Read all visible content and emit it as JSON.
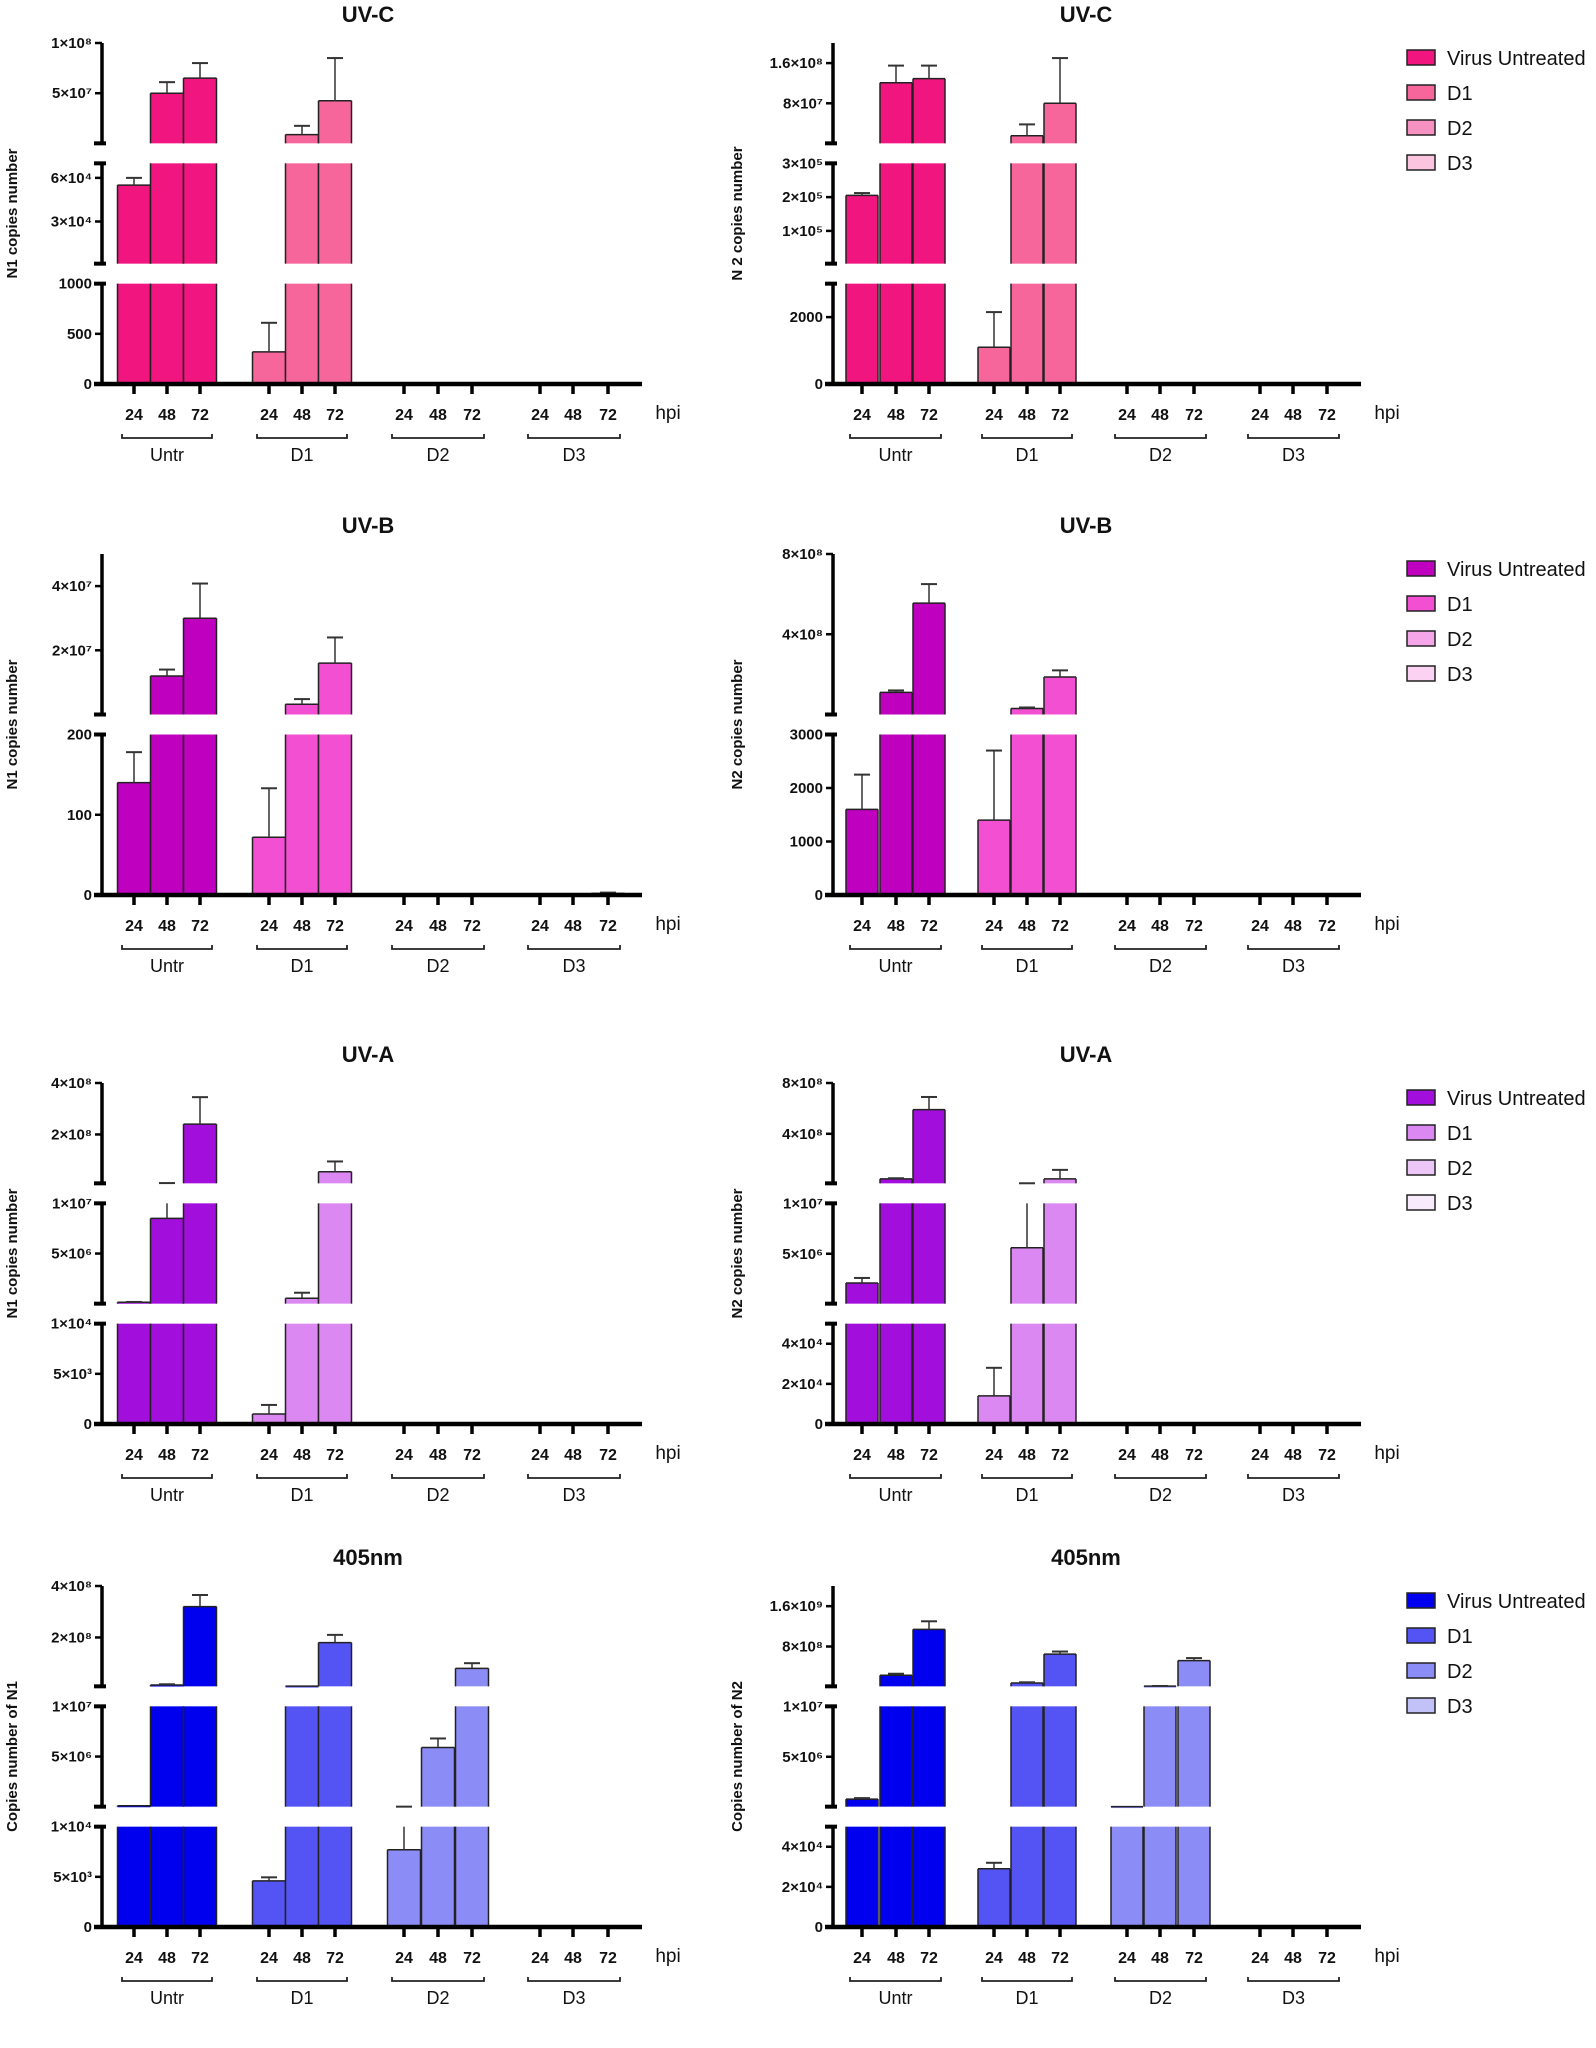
{
  "chart_data": {
    "type": "bar",
    "legend_entries": [
      "Virus Untreated",
      "D1",
      "D2",
      "D3"
    ],
    "groups": [
      "Untr",
      "D1",
      "D2",
      "D3"
    ],
    "hpi_ticks": [
      "24",
      "48",
      "72"
    ],
    "x_unit_label": "hpi",
    "legend_placement": "right",
    "error_bars": "upper (mean + error)",
    "panels": [
      {
        "title": "UV-C",
        "ylabel": "N1 copies number",
        "show_legend": false,
        "colors": [
          "#f0157f",
          "#f7669a",
          "#f592c2",
          "#fbc4df"
        ],
        "segments": [
          {
            "range": [
              0,
              1000
            ],
            "ticks": [
              {
                "value": 0,
                "label": "0"
              },
              {
                "value": 500,
                "label": "500"
              },
              {
                "value": 1000,
                "label": "1000"
              }
            ]
          },
          {
            "range": [
              1000,
              70000
            ],
            "ticks": [
              {
                "value": 30000,
                "label": "3×10⁴"
              },
              {
                "value": 60000,
                "label": "6×10⁴"
              }
            ]
          },
          {
            "range": [
              70000,
              100000000
            ],
            "ticks": [
              {
                "value": 50000000,
                "label": "5×10⁷"
              },
              {
                "value": 100000000,
                "label": "1×10⁸"
              }
            ]
          }
        ],
        "series": [
          {
            "group": "Untr",
            "values": [
              55000,
              50000000,
              65000000
            ],
            "error_upper": [
              60000,
              61000000,
              80000000
            ]
          },
          {
            "group": "D1",
            "values": [
              320,
              8750000,
              42500000
            ],
            "error_upper": [
              610,
              17500000,
              85000000
            ]
          },
          {
            "group": "D2",
            "values": [
              0,
              0,
              0
            ],
            "error_upper": [
              0,
              0,
              0
            ]
          },
          {
            "group": "D3",
            "values": [
              0,
              0,
              0
            ],
            "error_upper": [
              0,
              0,
              0
            ]
          }
        ]
      },
      {
        "title": "UV-C",
        "ylabel": "N 2 copies number",
        "show_legend": true,
        "colors": [
          "#f0157f",
          "#f7669a",
          "#f592c2",
          "#fbc4df"
        ],
        "segments": [
          {
            "range": [
              0,
              3000
            ],
            "ticks": [
              {
                "value": 0,
                "label": "0"
              },
              {
                "value": 2000,
                "label": "2000"
              }
            ]
          },
          {
            "range": [
              3000,
              300000
            ],
            "ticks": [
              {
                "value": 100000,
                "label": "1×10⁵"
              },
              {
                "value": 200000,
                "label": "2×10⁵"
              },
              {
                "value": 300000,
                "label": "3×10⁵"
              }
            ]
          },
          {
            "range": [
              300000,
              200000000
            ],
            "ticks": [
              {
                "value": 80000000,
                "label": "8×10⁷"
              },
              {
                "value": 160000000,
                "label": "1.6×10⁸"
              }
            ]
          }
        ],
        "series": [
          {
            "group": "Untr",
            "values": [
              205000,
              121000000,
              129000000
            ],
            "error_upper": [
              212000,
              155000000,
              155000000
            ]
          },
          {
            "group": "D1",
            "values": [
              1100,
              15500000,
              80000000
            ],
            "error_upper": [
              2150,
              38000000,
              170000000
            ]
          },
          {
            "group": "D2",
            "values": [
              0,
              0,
              0
            ],
            "error_upper": [
              0,
              0,
              0
            ]
          },
          {
            "group": "D3",
            "values": [
              0,
              0,
              0
            ],
            "error_upper": [
              0,
              0,
              0
            ]
          }
        ]
      },
      {
        "title": "UV-B",
        "ylabel": "N1 copies number",
        "show_legend": false,
        "colors": [
          "#c000bf",
          "#f34fd3",
          "#f5a6e8",
          "#fbd2f2"
        ],
        "segments": [
          {
            "range": [
              0,
              200
            ],
            "ticks": [
              {
                "value": 0,
                "label": "0"
              },
              {
                "value": 100,
                "label": "100"
              },
              {
                "value": 200,
                "label": "200"
              }
            ]
          },
          {
            "range": [
              200,
              50000000
            ],
            "ticks": [
              {
                "value": 20000000,
                "label": "2×10⁷"
              },
              {
                "value": 40000000,
                "label": "4×10⁷"
              }
            ]
          }
        ],
        "series": [
          {
            "group": "Untr",
            "values": [
              140,
              12000000,
              30000000
            ],
            "error_upper": [
              178,
              14000000,
              40800000
            ]
          },
          {
            "group": "D1",
            "values": [
              72,
              3200000,
              16000000
            ],
            "error_upper": [
              133,
              4800000,
              24000000
            ]
          },
          {
            "group": "D2",
            "values": [
              0,
              0,
              0
            ],
            "error_upper": [
              0,
              0,
              0
            ]
          },
          {
            "group": "D3",
            "values": [
              0,
              0,
              2
            ],
            "error_upper": [
              0,
              0,
              3
            ]
          }
        ]
      },
      {
        "title": "UV-B",
        "ylabel": "N2 copies number",
        "show_legend": true,
        "colors": [
          "#c000bf",
          "#f34fd3",
          "#f5a6e8",
          "#fbd2f2"
        ],
        "segments": [
          {
            "range": [
              0,
              3000
            ],
            "ticks": [
              {
                "value": 0,
                "label": "0"
              },
              {
                "value": 1000,
                "label": "1000"
              },
              {
                "value": 2000,
                "label": "2000"
              },
              {
                "value": 3000,
                "label": "3000"
              }
            ]
          },
          {
            "range": [
              3000,
              800000000
            ],
            "ticks": [
              {
                "value": 400000000,
                "label": "4×10⁸"
              },
              {
                "value": 800000000,
                "label": "8×10⁸"
              }
            ]
          }
        ],
        "series": [
          {
            "group": "Untr",
            "values": [
              1600,
              110000000,
              555000000
            ],
            "error_upper": [
              2250,
              120000000,
              650000000
            ]
          },
          {
            "group": "D1",
            "values": [
              1400,
              30000000,
              187000000
            ],
            "error_upper": [
              2700,
              35000000,
              220000000
            ]
          },
          {
            "group": "D2",
            "values": [
              0,
              0,
              0
            ],
            "error_upper": [
              0,
              0,
              0
            ]
          },
          {
            "group": "D3",
            "values": [
              0,
              0,
              0
            ],
            "error_upper": [
              0,
              0,
              0
            ]
          }
        ]
      },
      {
        "title": "UV-A",
        "ylabel": "N1 copies number",
        "show_legend": false,
        "colors": [
          "#a20fdc",
          "#dc88f2",
          "#ecc6f6",
          "#f8ecfc"
        ],
        "segments": [
          {
            "range": [
              0,
              10000
            ],
            "ticks": [
              {
                "value": 0,
                "label": "0"
              },
              {
                "value": 5000,
                "label": "5×10³"
              },
              {
                "value": 10000,
                "label": "1×10⁴"
              }
            ]
          },
          {
            "range": [
              10000,
              10000000
            ],
            "ticks": [
              {
                "value": 5000000,
                "label": "5×10⁶"
              },
              {
                "value": 10000000,
                "label": "1×10⁷"
              }
            ]
          },
          {
            "range": [
              10000000,
              400000000
            ],
            "ticks": [
              {
                "value": 200000000,
                "label": "2×10⁸"
              },
              {
                "value": 400000000,
                "label": "4×10⁸"
              }
            ]
          }
        ],
        "series": [
          {
            "group": "Untr",
            "values": [
              150000,
              8500000,
              240000000
            ],
            "error_upper": [
              180000,
              11000000,
              345000000
            ]
          },
          {
            "group": "D1",
            "values": [
              1000,
              550000,
              55000000
            ],
            "error_upper": [
              1900,
              1100000,
              95000000
            ]
          },
          {
            "group": "D2",
            "values": [
              0,
              0,
              0
            ],
            "error_upper": [
              0,
              0,
              0
            ]
          },
          {
            "group": "D3",
            "values": [
              0,
              0,
              0
            ],
            "error_upper": [
              0,
              0,
              0
            ]
          }
        ]
      },
      {
        "title": "UV-A",
        "ylabel": "N2 copies number",
        "show_legend": true,
        "colors": [
          "#a20fdc",
          "#dc88f2",
          "#ecc6f6",
          "#f8ecfc"
        ],
        "segments": [
          {
            "range": [
              0,
              50000
            ],
            "ticks": [
              {
                "value": 0,
                "label": "0"
              },
              {
                "value": 20000,
                "label": "2×10⁴"
              },
              {
                "value": 40000,
                "label": "4×10⁴"
              }
            ]
          },
          {
            "range": [
              50000,
              10000000
            ],
            "ticks": [
              {
                "value": 5000000,
                "label": "5×10⁶"
              },
              {
                "value": 10000000,
                "label": "1×10⁷"
              }
            ]
          },
          {
            "range": [
              10000000,
              800000000
            ],
            "ticks": [
              {
                "value": 400000000,
                "label": "4×10⁸"
              },
              {
                "value": 800000000,
                "label": "8×10⁸"
              }
            ]
          }
        ],
        "series": [
          {
            "group": "Untr",
            "values": [
              2100000,
              45000000,
              590000000
            ],
            "error_upper": [
              2600000,
              50000000,
              690000000
            ]
          },
          {
            "group": "D1",
            "values": [
              14000,
              5600000,
              45000000
            ],
            "error_upper": [
              28000,
              10500000,
              116000000
            ]
          },
          {
            "group": "D2",
            "values": [
              0,
              0,
              0
            ],
            "error_upper": [
              0,
              0,
              0
            ]
          },
          {
            "group": "D3",
            "values": [
              0,
              0,
              0
            ],
            "error_upper": [
              0,
              0,
              0
            ]
          }
        ]
      },
      {
        "title": "405nm",
        "ylabel": "Copies number of N1",
        "show_legend": false,
        "colors": [
          "#0000ee",
          "#5454f5",
          "#8c8cf6",
          "#c2c2f9"
        ],
        "segments": [
          {
            "range": [
              0,
              10000
            ],
            "ticks": [
              {
                "value": 0,
                "label": "0"
              },
              {
                "value": 5000,
                "label": "5×10³"
              },
              {
                "value": 10000,
                "label": "1×10⁴"
              }
            ]
          },
          {
            "range": [
              10000,
              10000000
            ],
            "ticks": [
              {
                "value": 5000000,
                "label": "5×10⁶"
              },
              {
                "value": 10000000,
                "label": "1×10⁷"
              }
            ]
          },
          {
            "range": [
              10000000,
              400000000
            ],
            "ticks": [
              {
                "value": 200000000,
                "label": "2×10⁸"
              },
              {
                "value": 400000000,
                "label": "4×10⁸"
              }
            ]
          }
        ],
        "series": [
          {
            "group": "Untr",
            "values": [
              100000,
              15000000,
              320000000
            ],
            "error_upper": [
              100000,
              18000000,
              365000000
            ]
          },
          {
            "group": "D1",
            "values": [
              4600,
              11000000,
              180000000
            ],
            "error_upper": [
              4950,
              11000000,
              210000000
            ]
          },
          {
            "group": "D2",
            "values": [
              7700,
              5900000,
              80000000
            ],
            "error_upper": [
              12000,
              6800000,
              100000000
            ]
          },
          {
            "group": "D3",
            "values": [
              0,
              0,
              0
            ],
            "error_upper": [
              0,
              0,
              0
            ]
          }
        ]
      },
      {
        "title": "405nm",
        "ylabel": "Copies number of N2",
        "show_legend": true,
        "colors": [
          "#0000ee",
          "#5454f5",
          "#8c8cf6",
          "#c2c2f9"
        ],
        "segments": [
          {
            "range": [
              0,
              50000
            ],
            "ticks": [
              {
                "value": 0,
                "label": "0"
              },
              {
                "value": 20000,
                "label": "2×10⁴"
              },
              {
                "value": 40000,
                "label": "4×10⁴"
              }
            ]
          },
          {
            "range": [
              50000,
              10000000
            ],
            "ticks": [
              {
                "value": 5000000,
                "label": "5×10⁶"
              },
              {
                "value": 10000000,
                "label": "1×10⁷"
              }
            ]
          },
          {
            "range": [
              10000000,
              2000000000
            ],
            "ticks": [
              {
                "value": 800000000,
                "label": "8×10⁸"
              },
              {
                "value": 1600000000,
                "label": "1.6×10⁹"
              }
            ]
          }
        ],
        "series": [
          {
            "group": "Untr",
            "values": [
              800000,
              230000000,
              1140000000
            ],
            "error_upper": [
              900000,
              260000000,
              1300000000
            ]
          },
          {
            "group": "D1",
            "values": [
              29000,
              77000000,
              650000000
            ],
            "error_upper": [
              32000,
              90000000,
              700000000
            ]
          },
          {
            "group": "D2",
            "values": [
              60000,
              15000000,
              520000000
            ],
            "error_upper": [
              60000,
              17000000,
              570000000
            ]
          },
          {
            "group": "D3",
            "values": [
              0,
              0,
              0
            ],
            "error_upper": [
              0,
              0,
              0
            ]
          }
        ]
      }
    ]
  }
}
